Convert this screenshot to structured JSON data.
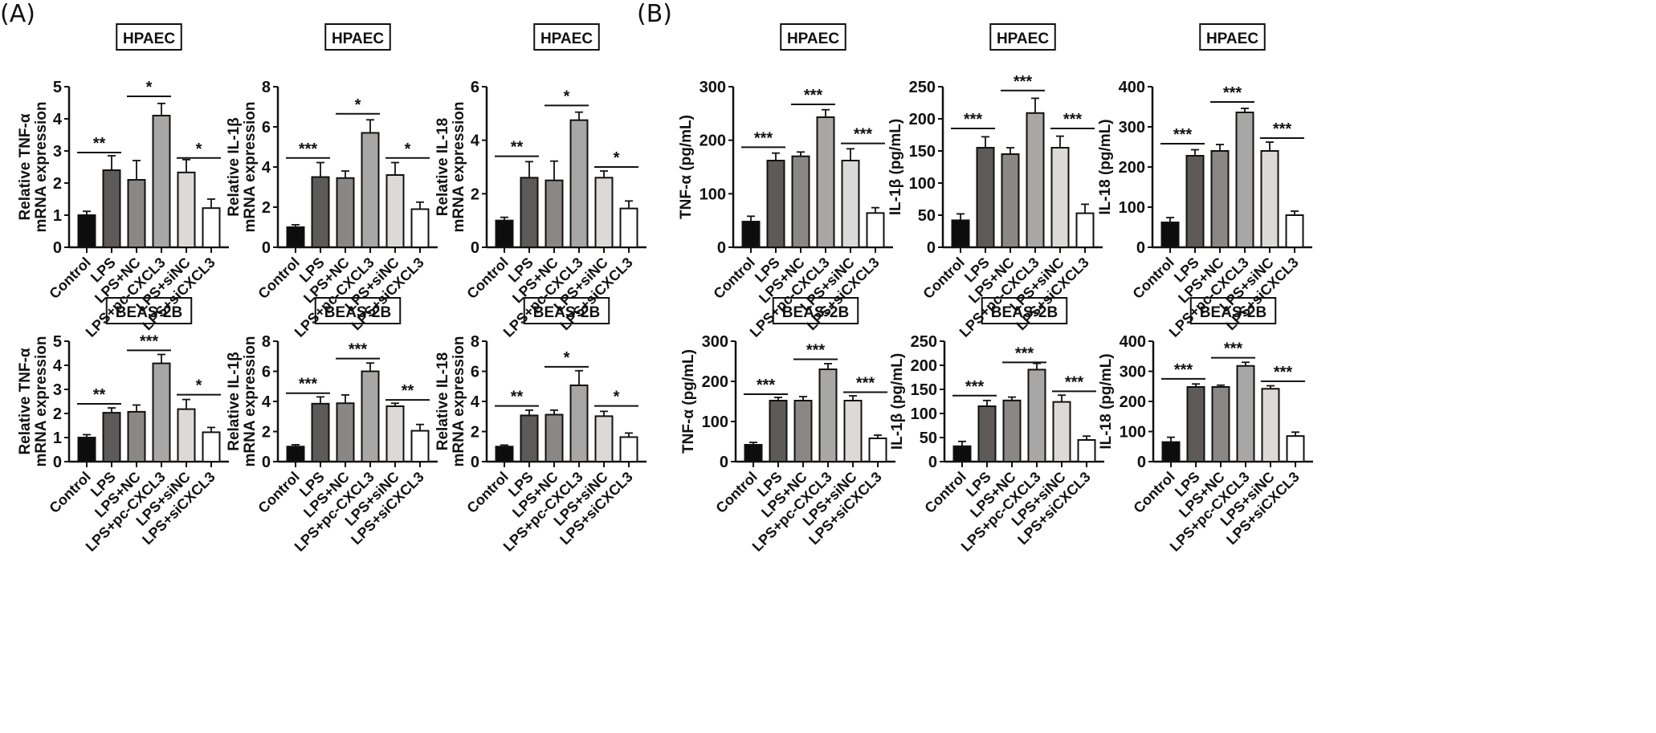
{
  "figure": {
    "panel_labels": [
      "(A)",
      "(B)"
    ]
  },
  "chart_data": [
    {
      "id": "A-HPAEC-TNF",
      "panel": "A",
      "type": "bar",
      "title": "HPAEC",
      "ylabel": [
        "Relative TNF-α",
        "mRNA expression"
      ],
      "categories": [
        "Control",
        "LPS",
        "LPS+NC",
        "LPS+pc-CXCL3",
        "LPS+siNC",
        "LPS+siCXCL3"
      ],
      "values": [
        1.0,
        2.4,
        2.1,
        4.1,
        2.33,
        1.22
      ],
      "errors": [
        0.12,
        0.45,
        0.6,
        0.38,
        0.4,
        0.28
      ],
      "ylim": [
        0,
        5
      ],
      "yticks": [
        0,
        1,
        2,
        3,
        4,
        5
      ],
      "significance": [
        {
          "from": 0,
          "to": 1,
          "label": "**",
          "y": 2.95
        },
        {
          "from": 2,
          "to": 3,
          "label": "*",
          "y": 4.7
        },
        {
          "from": 4,
          "to": 5,
          "label": "*",
          "y": 2.78
        }
      ]
    },
    {
      "id": "A-HPAEC-IL1B",
      "panel": "A",
      "type": "bar",
      "title": "HPAEC",
      "ylabel": [
        "Relative IL-1β",
        "mRNA expression"
      ],
      "categories": [
        "Control",
        "LPS",
        "LPS+NC",
        "LPS+pc-CXCL3",
        "LPS+siNC",
        "LPS+siCXCL3"
      ],
      "values": [
        1.0,
        3.5,
        3.45,
        5.7,
        3.6,
        1.9
      ],
      "errors": [
        0.12,
        0.72,
        0.35,
        0.65,
        0.62,
        0.35
      ],
      "ylim": [
        0,
        8
      ],
      "yticks": [
        0,
        2,
        4,
        6,
        8
      ],
      "significance": [
        {
          "from": 0,
          "to": 1,
          "label": "***",
          "y": 4.45
        },
        {
          "from": 2,
          "to": 3,
          "label": "*",
          "y": 6.65
        },
        {
          "from": 4,
          "to": 5,
          "label": "*",
          "y": 4.45
        }
      ]
    },
    {
      "id": "A-HPAEC-IL18",
      "panel": "A",
      "type": "bar",
      "title": "HPAEC",
      "ylabel": [
        "Relative IL-18",
        "mRNA expression"
      ],
      "categories": [
        "Control",
        "LPS",
        "LPS+NC",
        "LPS+pc-CXCL3",
        "LPS+siNC",
        "LPS+siCXCL3"
      ],
      "values": [
        1.0,
        2.6,
        2.5,
        4.75,
        2.6,
        1.45
      ],
      "errors": [
        0.12,
        0.6,
        0.72,
        0.3,
        0.25,
        0.28
      ],
      "ylim": [
        0,
        6
      ],
      "yticks": [
        0,
        2,
        4,
        6
      ],
      "significance": [
        {
          "from": 0,
          "to": 1,
          "label": "**",
          "y": 3.4
        },
        {
          "from": 2,
          "to": 3,
          "label": "*",
          "y": 5.3
        },
        {
          "from": 4,
          "to": 5,
          "label": "*",
          "y": 3.0
        }
      ]
    },
    {
      "id": "B-HPAEC-TNF",
      "panel": "B",
      "type": "bar",
      "title": "HPAEC",
      "ylabel": [
        "TNF-α (pg/mL)"
      ],
      "categories": [
        "Control",
        "LPS",
        "LPS+NC",
        "LPS+pc-CXCL3",
        "LPS+siNC",
        "LPS+siCXCL3"
      ],
      "values": [
        48,
        162,
        170,
        243,
        162,
        64
      ],
      "errors": [
        10,
        14,
        8,
        14,
        22,
        10
      ],
      "ylim": [
        0,
        300
      ],
      "yticks": [
        0,
        100,
        200,
        300
      ],
      "significance": [
        {
          "from": 0,
          "to": 1,
          "label": "***",
          "y": 187
        },
        {
          "from": 2,
          "to": 3,
          "label": "***",
          "y": 267
        },
        {
          "from": 4,
          "to": 5,
          "label": "***",
          "y": 194
        }
      ]
    },
    {
      "id": "B-HPAEC-IL1B",
      "panel": "B",
      "type": "bar",
      "title": "HPAEC",
      "ylabel": [
        "IL-1β (pg/mL)"
      ],
      "categories": [
        "Control",
        "LPS",
        "LPS+NC",
        "LPS+pc-CXCL3",
        "LPS+siNC",
        "LPS+siCXCL3"
      ],
      "values": [
        42,
        155,
        145,
        209,
        155,
        53
      ],
      "errors": [
        10,
        17,
        10,
        23,
        18,
        14
      ],
      "ylim": [
        0,
        250
      ],
      "yticks": [
        0,
        50,
        100,
        150,
        200,
        250
      ],
      "significance": [
        {
          "from": 0,
          "to": 1,
          "label": "***",
          "y": 185
        },
        {
          "from": 2,
          "to": 3,
          "label": "***",
          "y": 244
        },
        {
          "from": 4,
          "to": 5,
          "label": "***",
          "y": 185
        }
      ]
    },
    {
      "id": "B-HPAEC-IL18",
      "panel": "B",
      "type": "bar",
      "title": "HPAEC",
      "ylabel": [
        "IL-18 (pg/mL)"
      ],
      "categories": [
        "Control",
        "LPS",
        "LPS+NC",
        "LPS+pc-CXCL3",
        "LPS+siNC",
        "LPS+siCXCL3"
      ],
      "values": [
        62,
        228,
        240,
        336,
        240,
        80
      ],
      "errors": [
        12,
        15,
        16,
        10,
        22,
        10
      ],
      "ylim": [
        0,
        400
      ],
      "yticks": [
        0,
        100,
        200,
        300,
        400
      ],
      "significance": [
        {
          "from": 0,
          "to": 1,
          "label": "***",
          "y": 258
        },
        {
          "from": 2,
          "to": 3,
          "label": "***",
          "y": 362
        },
        {
          "from": 4,
          "to": 5,
          "label": "***",
          "y": 272
        }
      ]
    },
    {
      "id": "A-BEAS2B-TNF",
      "panel": "A",
      "type": "bar",
      "title": "BEAS-2B",
      "ylabel": [
        "Relative TNF-α",
        "mRNA expression"
      ],
      "categories": [
        "Control",
        "LPS",
        "LPS+NC",
        "LPS+pc-CXCL3",
        "LPS+siNC",
        "LPS+siCXCL3"
      ],
      "values": [
        1.0,
        2.03,
        2.07,
        4.08,
        2.18,
        1.22
      ],
      "errors": [
        0.12,
        0.2,
        0.28,
        0.37,
        0.4,
        0.2
      ],
      "ylim": [
        0,
        5
      ],
      "yticks": [
        0,
        1,
        2,
        3,
        4,
        5
      ],
      "significance": [
        {
          "from": 0,
          "to": 1,
          "label": "**",
          "y": 2.4
        },
        {
          "from": 2,
          "to": 3,
          "label": "***",
          "y": 4.62
        },
        {
          "from": 4,
          "to": 5,
          "label": "*",
          "y": 2.78
        }
      ]
    },
    {
      "id": "A-BEAS2B-IL1B",
      "panel": "A",
      "type": "bar",
      "title": "BEAS-2B",
      "ylabel": [
        "Relative IL-1β",
        "mRNA expression"
      ],
      "categories": [
        "Control",
        "LPS",
        "LPS+NC",
        "LPS+pc-CXCL3",
        "LPS+siNC",
        "LPS+siCXCL3"
      ],
      "values": [
        1.0,
        3.85,
        3.88,
        6.0,
        3.68,
        2.05
      ],
      "errors": [
        0.12,
        0.45,
        0.55,
        0.55,
        0.2,
        0.42
      ],
      "ylim": [
        0,
        8
      ],
      "yticks": [
        0,
        2,
        4,
        6,
        8
      ],
      "significance": [
        {
          "from": 0,
          "to": 1,
          "label": "***",
          "y": 4.55
        },
        {
          "from": 2,
          "to": 3,
          "label": "***",
          "y": 6.85
        },
        {
          "from": 4,
          "to": 5,
          "label": "**",
          "y": 4.1
        }
      ]
    },
    {
      "id": "A-BEAS2B-IL18",
      "panel": "A",
      "type": "bar",
      "title": "BEAS-2B",
      "ylabel": [
        "Relative IL-18",
        "mRNA expression"
      ],
      "categories": [
        "Control",
        "LPS",
        "LPS+NC",
        "LPS+pc-CXCL3",
        "LPS+siNC",
        "LPS+siCXCL3"
      ],
      "values": [
        1.0,
        3.07,
        3.12,
        5.07,
        3.02,
        1.63
      ],
      "errors": [
        0.1,
        0.35,
        0.3,
        0.97,
        0.32,
        0.27
      ],
      "ylim": [
        0,
        8
      ],
      "yticks": [
        0,
        2,
        4,
        6,
        8
      ],
      "significance": [
        {
          "from": 0,
          "to": 1,
          "label": "**",
          "y": 3.7
        },
        {
          "from": 2,
          "to": 3,
          "label": "*",
          "y": 6.3
        },
        {
          "from": 4,
          "to": 5,
          "label": "*",
          "y": 3.7
        }
      ]
    },
    {
      "id": "B-BEAS2B-TNF",
      "panel": "B",
      "type": "bar",
      "title": "BEAS-2B",
      "ylabel": [
        "TNF-α (pg/mL)"
      ],
      "categories": [
        "Control",
        "LPS",
        "LPS+NC",
        "LPS+pc-CXCL3",
        "LPS+siNC",
        "LPS+siCXCL3"
      ],
      "values": [
        42,
        152,
        152,
        230,
        152,
        58
      ],
      "errors": [
        6,
        8,
        10,
        14,
        12,
        8
      ],
      "ylim": [
        0,
        300
      ],
      "yticks": [
        0,
        100,
        200,
        300
      ],
      "significance": [
        {
          "from": 0,
          "to": 1,
          "label": "***",
          "y": 168
        },
        {
          "from": 2,
          "to": 3,
          "label": "***",
          "y": 255
        },
        {
          "from": 4,
          "to": 5,
          "label": "***",
          "y": 173
        }
      ]
    },
    {
      "id": "B-BEAS2B-IL1B",
      "panel": "B",
      "type": "bar",
      "title": "BEAS-2B",
      "ylabel": [
        "IL-1β (pg/mL)"
      ],
      "categories": [
        "Control",
        "LPS",
        "LPS+NC",
        "LPS+pc-CXCL3",
        "LPS+siNC",
        "LPS+siCXCL3"
      ],
      "values": [
        32,
        115,
        127,
        191,
        124,
        45
      ],
      "errors": [
        10,
        12,
        7,
        13,
        14,
        8
      ],
      "ylim": [
        0,
        250
      ],
      "yticks": [
        0,
        50,
        100,
        150,
        200,
        250
      ],
      "significance": [
        {
          "from": 0,
          "to": 1,
          "label": "***",
          "y": 137
        },
        {
          "from": 2,
          "to": 3,
          "label": "***",
          "y": 206
        },
        {
          "from": 4,
          "to": 5,
          "label": "***",
          "y": 146
        }
      ]
    },
    {
      "id": "B-BEAS2B-IL18",
      "panel": "B",
      "type": "bar",
      "title": "BEAS-2B",
      "ylabel": [
        "IL-18 (pg/mL)"
      ],
      "categories": [
        "Control",
        "LPS",
        "LPS+NC",
        "LPS+pc-CXCL3",
        "LPS+siNC",
        "LPS+siCXCL3"
      ],
      "values": [
        65,
        248,
        248,
        318,
        242,
        85
      ],
      "errors": [
        16,
        10,
        6,
        12,
        10,
        13
      ],
      "ylim": [
        0,
        400
      ],
      "yticks": [
        0,
        100,
        200,
        300,
        400
      ],
      "significance": [
        {
          "from": 0,
          "to": 1,
          "label": "***",
          "y": 275
        },
        {
          "from": 2,
          "to": 3,
          "label": "***",
          "y": 345
        },
        {
          "from": 4,
          "to": 5,
          "label": "***",
          "y": 267
        }
      ]
    }
  ],
  "bar_fills": [
    "#0d0d0d",
    "#5e5a57",
    "#8a8785",
    "#a9a6a6",
    "#dcdad8",
    "#ffffff"
  ]
}
